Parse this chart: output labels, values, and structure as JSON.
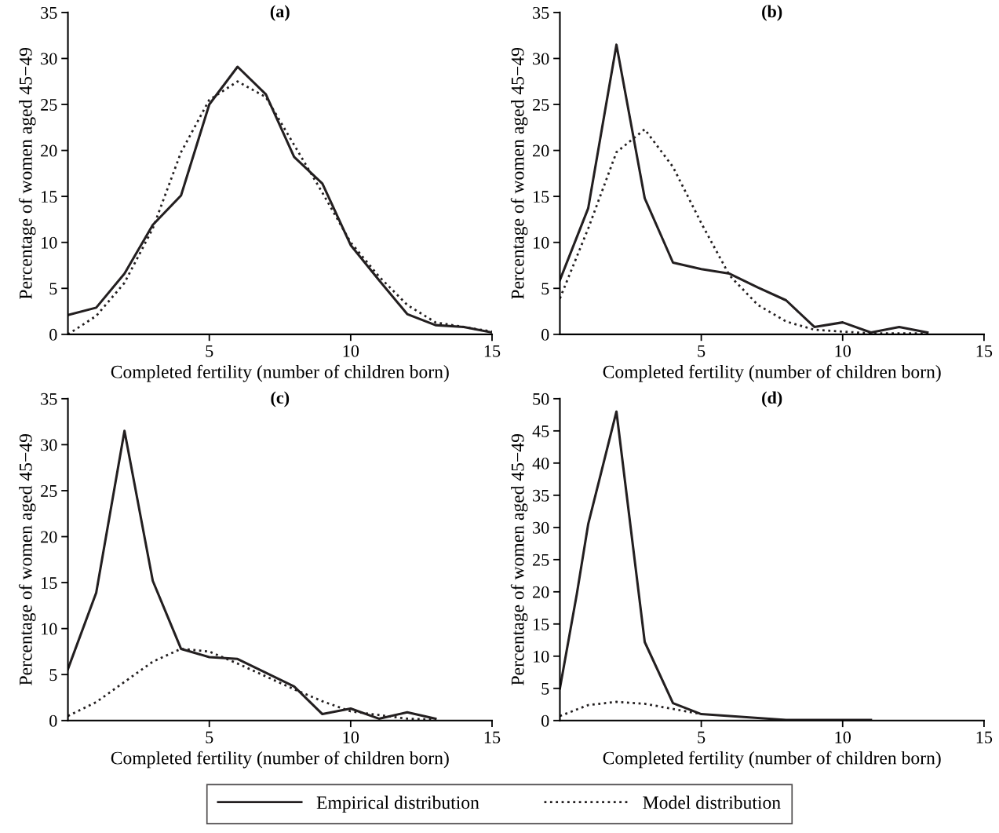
{
  "chart_data": [
    {
      "type": "line",
      "title": "(a)",
      "xlabel": "Completed fertility (number of children born)",
      "ylabel": "Percentage of women aged 45−49",
      "xlim": [
        0,
        15
      ],
      "xticks": [
        5,
        10,
        15
      ],
      "ylim": [
        0,
        35
      ],
      "yticks": [
        0,
        5,
        10,
        15,
        20,
        25,
        30,
        35
      ],
      "grid": false,
      "series": [
        {
          "color": "#231f20",
          "line_style": "solid",
          "x": [
            0,
            1,
            2,
            3,
            4,
            5,
            6,
            7,
            8,
            9,
            10,
            11,
            12,
            13,
            14,
            15
          ],
          "values": [
            2.1,
            2.9,
            6.6,
            11.9,
            15.1,
            25,
            29.1,
            26.1,
            19.3,
            16.4,
            9.7,
            5.9,
            2.2,
            1.0,
            0.8,
            0.2
          ]
        },
        {
          "color": "#231f20",
          "line_style": "dotted",
          "x": [
            0,
            1,
            2,
            3,
            4,
            5,
            6,
            7,
            8,
            9,
            10,
            11,
            12,
            13,
            14,
            15
          ],
          "values": [
            0,
            2.0,
            5.6,
            11.5,
            19.8,
            25.5,
            27.5,
            25.8,
            20.6,
            15.4,
            10.0,
            6.3,
            3.2,
            1.3,
            0.8,
            0.3
          ]
        }
      ]
    },
    {
      "type": "line",
      "title": "(b)",
      "xlabel": "Completed fertility (number of children born)",
      "ylabel": "Percentage of women aged 45−49",
      "xlim": [
        0,
        15
      ],
      "xticks": [
        5,
        10,
        15
      ],
      "ylim": [
        0,
        35
      ],
      "yticks": [
        0,
        5,
        10,
        15,
        20,
        25,
        30,
        35
      ],
      "grid": false,
      "series": [
        {
          "color": "#231f20",
          "line_style": "solid",
          "x": [
            0,
            1,
            2,
            3,
            4,
            5,
            6,
            7,
            8,
            9,
            10,
            11,
            12,
            13
          ],
          "values": [
            5.9,
            13.7,
            31.5,
            14.8,
            7.8,
            7.1,
            6.6,
            5.1,
            3.7,
            0.8,
            1.3,
            0.2,
            0.8,
            0.2
          ]
        },
        {
          "color": "#231f20",
          "line_style": "dotted",
          "x": [
            0,
            1,
            2,
            3,
            4,
            5,
            6,
            7,
            8,
            9,
            10,
            11,
            12,
            13
          ],
          "values": [
            3.9,
            11.5,
            19.8,
            22.3,
            18.2,
            12.1,
            6.4,
            3.2,
            1.4,
            0.5,
            0.3,
            0.1,
            0.1,
            0.1
          ]
        }
      ]
    },
    {
      "type": "line",
      "title": "(c)",
      "xlabel": "Completed fertility (number of children born)",
      "ylabel": "Percentage of women aged 45−49",
      "xlim": [
        0,
        15
      ],
      "xticks": [
        5,
        10,
        15
      ],
      "ylim": [
        0,
        35
      ],
      "yticks": [
        0,
        5,
        10,
        15,
        20,
        25,
        30,
        35
      ],
      "grid": false,
      "series": [
        {
          "color": "#231f20",
          "line_style": "solid",
          "x": [
            0,
            1,
            2,
            3,
            4,
            5,
            6,
            7,
            8,
            9,
            10,
            11,
            12,
            13
          ],
          "values": [
            5.6,
            13.9,
            31.5,
            15.2,
            7.8,
            6.9,
            6.7,
            5.2,
            3.7,
            0.7,
            1.3,
            0.2,
            0.9,
            0.2
          ]
        },
        {
          "color": "#231f20",
          "line_style": "dotted",
          "x": [
            0,
            1,
            2,
            3,
            4,
            5,
            6,
            7,
            8,
            9,
            10,
            11,
            12,
            13
          ],
          "values": [
            0.5,
            2.0,
            4.2,
            6.4,
            7.8,
            7.5,
            6.2,
            4.8,
            3.4,
            2.1,
            1.0,
            0.6,
            0.2,
            0.1
          ]
        }
      ]
    },
    {
      "type": "line",
      "title": "(d)",
      "xlabel": "Completed fertility (number of children born)",
      "ylabel": "Percentage of women aged 45−49",
      "xlim": [
        0,
        15
      ],
      "xticks": [
        5,
        10,
        15
      ],
      "ylim": [
        0,
        50
      ],
      "yticks": [
        0,
        5,
        10,
        15,
        20,
        25,
        30,
        35,
        40,
        45,
        50
      ],
      "grid": false,
      "legend": "bottom",
      "series": [
        {
          "name": "Empirical distribution",
          "color": "#231f20",
          "line_style": "solid",
          "x": [
            0,
            0.6,
            1,
            2,
            3,
            4,
            5,
            8,
            11
          ],
          "values": [
            5,
            19.7,
            30.5,
            48,
            12.2,
            2.7,
            1.0,
            0.1,
            0.1
          ]
        },
        {
          "name": "Model distribution",
          "color": "#231f20",
          "line_style": "dotted",
          "x": [
            0,
            1,
            2,
            3,
            4,
            5
          ],
          "values": [
            0.7,
            2.4,
            2.9,
            2.6,
            1.8,
            1.0
          ]
        }
      ]
    }
  ]
}
